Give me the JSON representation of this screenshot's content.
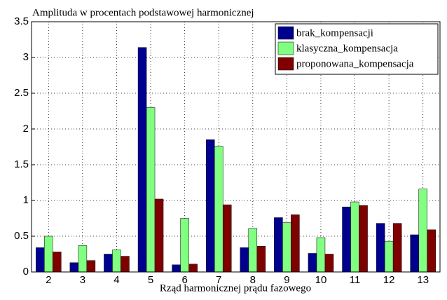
{
  "chart_data": {
    "type": "bar",
    "title": "Amplituda w procentach podstawowej harmonicznej",
    "x_label": "Rząd harmonicznej prądu fazowego",
    "categories": [
      "2",
      "3",
      "4",
      "5",
      "6",
      "7",
      "8",
      "9",
      "10",
      "11",
      "12",
      "13"
    ],
    "series": [
      {
        "name": "brak_kompensacji",
        "color": "#00008f",
        "values": [
          0.34,
          0.13,
          0.25,
          3.14,
          0.1,
          1.85,
          0.34,
          0.76,
          0.26,
          0.91,
          0.68,
          0.52
        ]
      },
      {
        "name": "klasyczna_kompensacja",
        "color": "#80ff80",
        "values": [
          0.5,
          0.37,
          0.31,
          2.3,
          0.75,
          1.76,
          0.61,
          0.69,
          0.48,
          0.98,
          0.43,
          1.16
        ]
      },
      {
        "name": "proponowana_kompensacja",
        "color": "#800000",
        "values": [
          0.28,
          0.16,
          0.22,
          1.02,
          0.11,
          0.94,
          0.36,
          0.8,
          0.25,
          0.93,
          0.68,
          0.59
        ]
      }
    ],
    "ylim": [
      0,
      3.5
    ],
    "yticks": [
      0,
      0.5,
      1,
      1.5,
      2,
      2.5,
      3,
      3.5
    ],
    "grid": true,
    "legend": "northeast"
  }
}
